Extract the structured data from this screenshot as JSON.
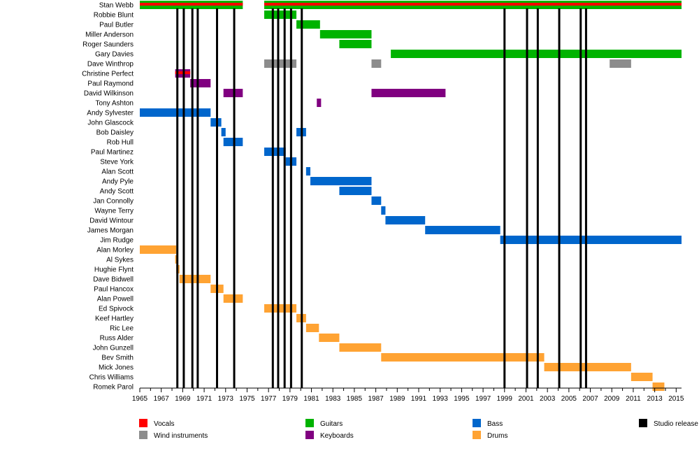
{
  "chart_data": {
    "type": "timeline",
    "x_start": 1965,
    "x_end": 2015.5,
    "x_tick_labels": [
      "1965",
      "1967",
      "1969",
      "1971",
      "1973",
      "1975",
      "1977",
      "1979",
      "1981",
      "1983",
      "1985",
      "1987",
      "1989",
      "1991",
      "1993",
      "1995",
      "1997",
      "1999",
      "2001",
      "2003",
      "2005",
      "2007",
      "2009",
      "2011",
      "2013",
      "2015"
    ],
    "members": [
      "Stan Webb",
      "Robbie Blunt",
      "Paul Butler",
      "Miller Anderson",
      "Roger Saunders",
      "Gary Davies",
      "Dave Winthrop",
      "Christine Perfect",
      "Paul Raymond",
      "David Wilkinson",
      "Tony Ashton",
      "Andy Sylvester",
      "John Glascock",
      "Bob Daisley",
      "Rob Hull",
      "Paul Martinez",
      "Steve York",
      "Alan Scott",
      "Andy Pyle",
      "Andy Scott",
      "Jan Connolly",
      "Wayne Terry",
      "David Wintour",
      "James Morgan",
      "Jim Rudge",
      "Alan Morley",
      "Al Sykes",
      "Hughie Flynt",
      "Dave Bidwell",
      "Paul Hancox",
      "Alan Powell",
      "Ed Spivock",
      "Keef Hartley",
      "Ric Lee",
      "Russ Alder",
      "John Gunzell",
      "Bev Smith",
      "Mick Jones",
      "Chris Williams",
      "Romek Parol"
    ],
    "bars": [
      {
        "member": 0,
        "role": "Guitars",
        "start": 1965,
        "end": 1974.6
      },
      {
        "member": 0,
        "role": "Vocals",
        "start": 1965,
        "end": 1974.6,
        "thin": true
      },
      {
        "member": 0,
        "role": "Guitars",
        "start": 1976.6,
        "end": 2015.5
      },
      {
        "member": 0,
        "role": "Vocals",
        "start": 1976.6,
        "end": 2015.5,
        "thin": true
      },
      {
        "member": 1,
        "role": "Guitars",
        "start": 1976.6,
        "end": 1979.6
      },
      {
        "member": 2,
        "role": "Guitars",
        "start": 1979.6,
        "end": 1981.8
      },
      {
        "member": 3,
        "role": "Guitars",
        "start": 1981.8,
        "end": 1986.6
      },
      {
        "member": 4,
        "role": "Guitars",
        "start": 1983.6,
        "end": 1986.6
      },
      {
        "member": 5,
        "role": "Guitars",
        "start": 1988.4,
        "end": 2015.5
      },
      {
        "member": 6,
        "role": "Wind instruments",
        "start": 1976.6,
        "end": 1979.6
      },
      {
        "member": 6,
        "role": "Wind instruments",
        "start": 1986.6,
        "end": 1987.5
      },
      {
        "member": 6,
        "role": "Wind instruments",
        "start": 2008.8,
        "end": 2010.8
      },
      {
        "member": 7,
        "role": "Keyboards",
        "start": 1968.3,
        "end": 1969.7
      },
      {
        "member": 7,
        "role": "Vocals",
        "start": 1968.3,
        "end": 1969.7,
        "thin": true
      },
      {
        "member": 8,
        "role": "Keyboards",
        "start": 1969.7,
        "end": 1971.6
      },
      {
        "member": 9,
        "role": "Keyboards",
        "start": 1972.8,
        "end": 1974.6
      },
      {
        "member": 9,
        "role": "Keyboards",
        "start": 1986.6,
        "end": 1993.5
      },
      {
        "member": 10,
        "role": "Keyboards",
        "start": 1981.5,
        "end": 1981.9
      },
      {
        "member": 11,
        "role": "Bass",
        "start": 1965,
        "end": 1971.6
      },
      {
        "member": 12,
        "role": "Bass",
        "start": 1971.6,
        "end": 1972.6
      },
      {
        "member": 13,
        "role": "Bass",
        "start": 1972.6,
        "end": 1973.0
      },
      {
        "member": 13,
        "role": "Bass",
        "start": 1979.6,
        "end": 1980.5
      },
      {
        "member": 14,
        "role": "Bass",
        "start": 1972.8,
        "end": 1974.6
      },
      {
        "member": 15,
        "role": "Bass",
        "start": 1976.6,
        "end": 1978.6
      },
      {
        "member": 16,
        "role": "Bass",
        "start": 1978.6,
        "end": 1979.6
      },
      {
        "member": 17,
        "role": "Bass",
        "start": 1980.5,
        "end": 1980.9
      },
      {
        "member": 18,
        "role": "Bass",
        "start": 1980.9,
        "end": 1986.6
      },
      {
        "member": 19,
        "role": "Bass",
        "start": 1983.6,
        "end": 1986.6
      },
      {
        "member": 20,
        "role": "Bass",
        "start": 1986.6,
        "end": 1987.5
      },
      {
        "member": 21,
        "role": "Bass",
        "start": 1987.5,
        "end": 1987.9
      },
      {
        "member": 22,
        "role": "Bass",
        "start": 1987.9,
        "end": 1991.6
      },
      {
        "member": 23,
        "role": "Bass",
        "start": 1991.6,
        "end": 1998.6
      },
      {
        "member": 24,
        "role": "Bass",
        "start": 1998.6,
        "end": 2015.5
      },
      {
        "member": 25,
        "role": "Drums",
        "start": 1965,
        "end": 1968.4
      },
      {
        "member": 26,
        "role": "Drums",
        "start": 1968.3,
        "end": 1968.5
      },
      {
        "member": 27,
        "role": "Drums",
        "start": 1968.4,
        "end": 1968.7
      },
      {
        "member": 28,
        "role": "Drums",
        "start": 1968.7,
        "end": 1971.6
      },
      {
        "member": 29,
        "role": "Drums",
        "start": 1971.6,
        "end": 1972.8
      },
      {
        "member": 30,
        "role": "Drums",
        "start": 1972.8,
        "end": 1974.6
      },
      {
        "member": 31,
        "role": "Drums",
        "start": 1976.6,
        "end": 1979.6
      },
      {
        "member": 32,
        "role": "Drums",
        "start": 1979.6,
        "end": 1980.5
      },
      {
        "member": 33,
        "role": "Drums",
        "start": 1980.5,
        "end": 1981.7
      },
      {
        "member": 34,
        "role": "Drums",
        "start": 1981.7,
        "end": 1983.6
      },
      {
        "member": 35,
        "role": "Drums",
        "start": 1983.6,
        "end": 1987.5
      },
      {
        "member": 36,
        "role": "Drums",
        "start": 1987.5,
        "end": 2002.7
      },
      {
        "member": 37,
        "role": "Drums",
        "start": 2002.7,
        "end": 2010.8
      },
      {
        "member": 38,
        "role": "Drums",
        "start": 2010.8,
        "end": 2012.8
      },
      {
        "member": 39,
        "role": "Drums",
        "start": 2012.8,
        "end": 2013.9
      }
    ],
    "studio_releases": [
      1968.5,
      1969.1,
      1969.9,
      1970.4,
      1972.2,
      1973.8,
      1977.4,
      1977.9,
      1978.5,
      1979.1,
      1980.1,
      1999.0,
      2001.1,
      2002.1,
      2004.1,
      2006.1,
      2006.6
    ],
    "legend": [
      {
        "label": "Vocals",
        "color": "#ff0000"
      },
      {
        "label": "Guitars",
        "color": "#00b300"
      },
      {
        "label": "Bass",
        "color": "#0066cc"
      },
      {
        "label": "Studio release",
        "color": "#000000"
      },
      {
        "label": "Wind instruments",
        "color": "#8c8c8c"
      },
      {
        "label": "Keyboards",
        "color": "#800080"
      },
      {
        "label": "Drums",
        "color": "#ffa333"
      }
    ],
    "role_colors": {
      "Vocals": "#ff0000",
      "Guitars": "#00b300",
      "Bass": "#0066cc",
      "Wind instruments": "#8c8c8c",
      "Keyboards": "#800080",
      "Drums": "#ffa333",
      "Studio release": "#000000"
    }
  }
}
